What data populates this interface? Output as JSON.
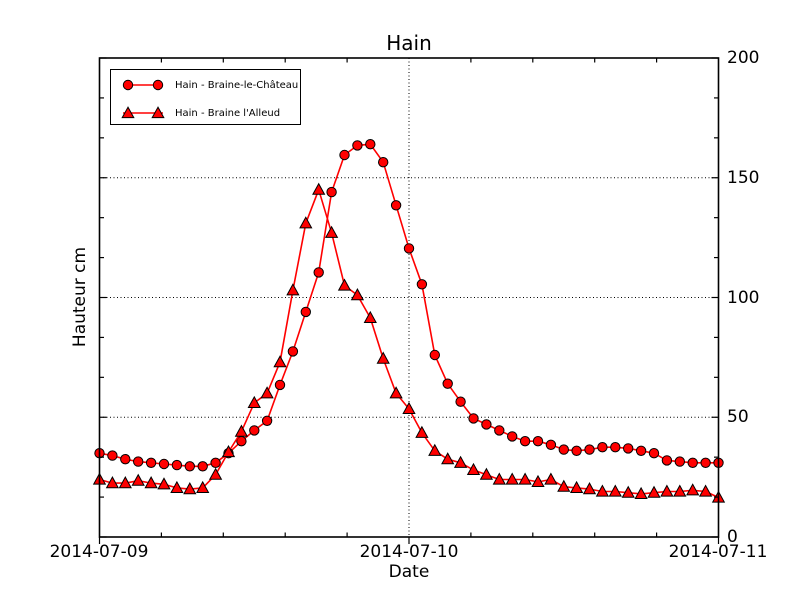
{
  "chart_data": {
    "type": "line",
    "title": "Hain",
    "xlabel": "Date",
    "ylabel": "Hauteur cm",
    "x_tick_labels": [
      "2014-07-09",
      "2014-07-10",
      "2014-07-11"
    ],
    "y_tick_labels": [
      "0",
      "50",
      "100",
      "150",
      "200"
    ],
    "ylim": [
      0,
      200
    ],
    "x_hours_span": 48,
    "x_unit": "hours since 2014-07-09 00:00",
    "grid": {
      "y_values": [
        50,
        100,
        150
      ],
      "x_hours": [
        24
      ],
      "style": "dotted"
    },
    "color": "#ff0000",
    "legend": {
      "position": "upper left",
      "entries": [
        {
          "label": "Hain - Braine-le-Château",
          "marker": "circle"
        },
        {
          "label": "Hain - Braine l'Alleud",
          "marker": "triangle"
        }
      ]
    },
    "series": [
      {
        "name": "Hain - Braine-le-Château",
        "marker": "circle",
        "x_hours": [
          0,
          1,
          2,
          3,
          4,
          5,
          6,
          7,
          8,
          9,
          10,
          11,
          12,
          13,
          14,
          15,
          16,
          17,
          18,
          19,
          20,
          21,
          22,
          23,
          24,
          25,
          26,
          27,
          28,
          29,
          30,
          31,
          32,
          33,
          34,
          35,
          36,
          37,
          38,
          39,
          40,
          41,
          42,
          43,
          44,
          45,
          46,
          47,
          48
        ],
        "values": [
          35,
          34,
          32.5,
          31.5,
          31,
          30.5,
          30,
          29.5,
          29.5,
          31,
          35,
          40,
          44.5,
          48.5,
          63.5,
          77.5,
          94,
          110.5,
          144,
          159.5,
          163.5,
          164,
          156.5,
          138.5,
          120.5,
          105.5,
          76,
          64,
          56.5,
          49.5,
          47,
          44.5,
          42,
          40,
          40,
          38.5,
          36.5,
          36,
          36.5,
          37.5,
          37.5,
          37,
          36,
          35,
          32,
          31.5,
          31,
          31,
          31
        ]
      },
      {
        "name": "Hain - Braine l'Alleud",
        "marker": "triangle",
        "x_hours": [
          0,
          1,
          2,
          3,
          4,
          5,
          6,
          7,
          8,
          9,
          10,
          11,
          12,
          13,
          14,
          15,
          16,
          17,
          18,
          19,
          20,
          21,
          22,
          23,
          24,
          25,
          26,
          27,
          28,
          29,
          30,
          31,
          32,
          33,
          34,
          35,
          36,
          37,
          38,
          39,
          40,
          41,
          42,
          43,
          44,
          45,
          46,
          47,
          48
        ],
        "values": [
          24,
          22.5,
          22.5,
          23.5,
          22.5,
          22,
          20.5,
          20,
          20.5,
          26,
          35.5,
          44,
          56,
          60,
          73,
          103,
          131,
          145,
          127,
          105,
          101,
          91.5,
          74.5,
          60,
          53.5,
          43.5,
          36,
          32.5,
          31,
          28,
          26,
          24,
          24,
          24,
          23,
          24,
          21,
          20.5,
          20,
          19,
          19,
          18.5,
          18,
          18.5,
          19,
          19,
          19.5,
          19,
          16.5
        ]
      }
    ]
  }
}
